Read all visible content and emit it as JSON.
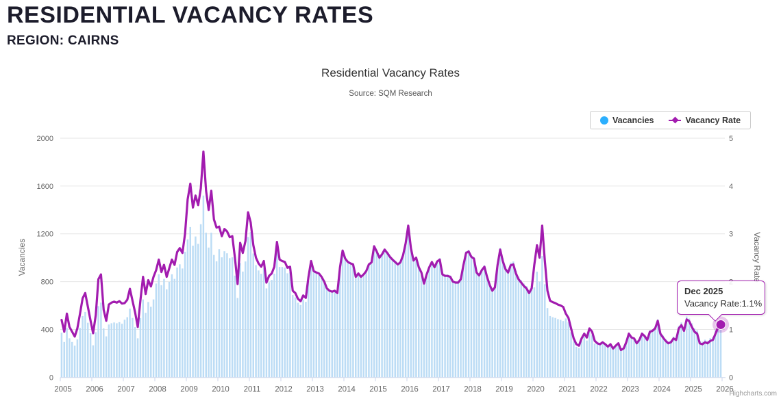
{
  "page": {
    "title": "RESIDENTIAL VACANCY RATES",
    "region_line": "REGION: CAIRNS"
  },
  "chart": {
    "title": "Residential Vacancy Rates",
    "subtitle": "Source: SQM Research",
    "legend": [
      {
        "label": "Vacancies"
      },
      {
        "label": "Vacancy Rate"
      }
    ],
    "tooltip": {
      "title": "Dec 2025",
      "text": "Vacancy Rate:1.1%"
    },
    "credits": "Highcharts.com",
    "colors": {
      "accent_purple": "#a21caf",
      "column_fill": "#bcdcf5",
      "legend_dot_blue": "#2caffe",
      "grid": "#e6e6e6",
      "axis_line": "#ccd6eb",
      "tick_text": "#666666",
      "title_text": "#333333",
      "halo": "rgba(162,28,175,0.25)"
    }
  },
  "chart_data": {
    "type": "combo-column-line",
    "start_month": "Jan 2005",
    "end_month": "Dec 2025",
    "x_year_labels": [
      2005,
      2006,
      2007,
      2008,
      2009,
      2010,
      2011,
      2012,
      2013,
      2014,
      2015,
      2016,
      2017,
      2018,
      2019,
      2020,
      2021,
      2022,
      2023,
      2024,
      2025,
      2026
    ],
    "left_axis": {
      "title": "Vacancies",
      "ticks": [
        0,
        400,
        800,
        1200,
        1600,
        2000
      ],
      "range": [
        0,
        2000
      ]
    },
    "right_axis": {
      "title": "Vacancy Rate",
      "ticks": [
        0,
        1,
        2,
        3,
        4,
        5
      ],
      "range": [
        0,
        5
      ]
    },
    "series": [
      {
        "name": "Vacancies",
        "type": "column",
        "axis": "left",
        "monthly_values_by_year": [
          [
            372,
            295,
            412,
            326,
            295,
            264,
            316,
            412,
            512,
            546,
            456,
            369
          ],
          [
            267,
            377,
            595,
            624,
            409,
            342,
            441,
            452,
            458,
            452,
            461,
            447
          ],
          [
            481,
            502,
            574,
            496,
            419,
            326,
            496,
            651,
            539,
            629,
            589,
            651
          ],
          [
            784,
            861,
            770,
            823,
            735,
            798,
            861,
            823,
            917,
            945,
            910,
            1050
          ],
          [
            1153,
            1256,
            1101,
            1178,
            1116,
            1280,
            1520,
            1209,
            1085,
            1209,
            1023,
            970
          ],
          [
            1071,
            1003,
            1054,
            1037,
            996,
            1003,
            850,
            663,
            955,
            884,
            969,
            1173
          ],
          [
            1215,
            1035,
            938,
            893,
            866,
            911,
            743,
            795,
            814,
            866,
            1061,
            923
          ],
          [
            923,
            916,
            870,
            878,
            688,
            669,
            623,
            604,
            650,
            631,
            798,
            923
          ],
          [
            877,
            865,
            857,
            830,
            790,
            735,
            715,
            707,
            715,
            695,
            909,
            1047
          ],
          [
            980,
            952,
            940,
            932,
            830,
            857,
            830,
            849,
            877,
            932,
            948,
            1082
          ],
          [
            1052,
            1000,
            1028,
            1068,
            1040,
            1008,
            984,
            964,
            944,
            960,
            1020,
            1120
          ],
          [
            1268,
            1080,
            976,
            1000,
            920,
            876,
            784,
            860,
            920,
            964,
            920,
            968
          ],
          [
            996,
            871,
            859,
            859,
            851,
            810,
            802,
            802,
            830,
            948,
            1053,
            1065
          ],
          [
            1021,
            1004,
            887,
            863,
            907,
            936,
            851,
            782,
            733,
            761,
            952,
            1081
          ],
          [
            996,
            927,
            898,
            959,
            968,
            890,
            841,
            812,
            783,
            763,
            722,
            763
          ],
          [
            752,
            883,
            800,
            1014,
            778,
            579,
            512,
            502,
            496,
            486,
            480,
            470
          ],
          [
            492,
            459,
            377,
            300,
            255,
            244,
            300,
            337,
            307,
            377,
            352,
            281
          ],
          [
            284,
            276,
            292,
            276,
            256,
            276,
            240,
            264,
            284,
            228,
            240,
            292
          ],
          [
            373,
            340,
            332,
            291,
            320,
            373,
            353,
            320,
            390,
            398,
            418,
            484
          ],
          [
            382,
            349,
            319,
            298,
            307,
            340,
            328,
            428,
            458,
            407,
            508,
            491
          ],
          [
            452,
            409,
            391,
            305,
            297,
            314,
            305,
            327,
            335,
            391,
            452,
            473
          ]
        ]
      },
      {
        "name": "Vacancy Rate",
        "type": "line",
        "axis": "right",
        "monthly_values_by_year": [
          [
            1.2,
            0.95,
            1.33,
            1.05,
            0.95,
            0.85,
            1.02,
            1.33,
            1.65,
            1.76,
            1.47,
            1.19
          ],
          [
            0.92,
            1.3,
            2.05,
            2.15,
            1.41,
            1.18,
            1.52,
            1.56,
            1.58,
            1.56,
            1.59,
            1.54
          ],
          [
            1.55,
            1.62,
            1.85,
            1.6,
            1.35,
            1.05,
            1.6,
            2.1,
            1.74,
            2.03,
            1.9,
            2.1
          ],
          [
            2.24,
            2.46,
            2.2,
            2.35,
            2.1,
            2.28,
            2.46,
            2.35,
            2.62,
            2.7,
            2.6,
            3.0
          ],
          [
            3.72,
            4.05,
            3.55,
            3.8,
            3.6,
            3.95,
            4.72,
            3.9,
            3.5,
            3.9,
            3.3,
            3.13
          ],
          [
            3.15,
            2.95,
            3.1,
            3.05,
            2.93,
            2.95,
            2.5,
            1.95,
            2.81,
            2.6,
            2.85,
            3.45
          ],
          [
            3.24,
            2.76,
            2.5,
            2.38,
            2.31,
            2.43,
            1.98,
            2.12,
            2.17,
            2.31,
            2.83,
            2.46
          ],
          [
            2.43,
            2.41,
            2.29,
            2.31,
            1.81,
            1.76,
            1.64,
            1.59,
            1.71,
            1.66,
            2.1,
            2.43
          ],
          [
            2.22,
            2.19,
            2.17,
            2.1,
            2.0,
            1.86,
            1.81,
            1.79,
            1.81,
            1.76,
            2.3,
            2.65
          ],
          [
            2.48,
            2.41,
            2.38,
            2.36,
            2.1,
            2.17,
            2.1,
            2.15,
            2.22,
            2.36,
            2.4,
            2.74
          ],
          [
            2.63,
            2.5,
            2.57,
            2.67,
            2.6,
            2.52,
            2.46,
            2.41,
            2.36,
            2.4,
            2.55,
            2.8
          ],
          [
            3.17,
            2.7,
            2.44,
            2.5,
            2.3,
            2.19,
            1.96,
            2.15,
            2.3,
            2.41,
            2.3,
            2.42
          ],
          [
            2.46,
            2.15,
            2.12,
            2.12,
            2.1,
            2.0,
            1.98,
            1.98,
            2.05,
            2.34,
            2.6,
            2.63
          ],
          [
            2.52,
            2.48,
            2.19,
            2.13,
            2.24,
            2.31,
            2.1,
            1.93,
            1.81,
            1.88,
            2.35,
            2.67
          ],
          [
            2.43,
            2.26,
            2.19,
            2.34,
            2.36,
            2.17,
            2.05,
            1.98,
            1.91,
            1.86,
            1.76,
            1.86
          ],
          [
            2.35,
            2.76,
            2.5,
            3.17,
            2.43,
            1.81,
            1.6,
            1.57,
            1.55,
            1.52,
            1.5,
            1.47
          ],
          [
            1.33,
            1.24,
            1.02,
            0.81,
            0.69,
            0.66,
            0.81,
            0.91,
            0.83,
            1.02,
            0.95,
            0.76
          ],
          [
            0.71,
            0.69,
            0.73,
            0.69,
            0.64,
            0.69,
            0.6,
            0.66,
            0.71,
            0.57,
            0.6,
            0.73
          ],
          [
            0.91,
            0.83,
            0.81,
            0.71,
            0.78,
            0.91,
            0.86,
            0.78,
            0.95,
            0.97,
            1.02,
            1.18
          ],
          [
            0.91,
            0.83,
            0.76,
            0.71,
            0.73,
            0.81,
            0.78,
            1.02,
            1.09,
            0.97,
            1.21,
            1.17
          ],
          [
            1.05,
            0.95,
            0.91,
            0.71,
            0.69,
            0.73,
            0.71,
            0.76,
            0.78,
            0.91,
            1.05,
            1.1
          ]
        ]
      }
    ],
    "highlight_point": {
      "month": "Dec 2025",
      "vacancy_rate_pct": 1.1
    }
  }
}
